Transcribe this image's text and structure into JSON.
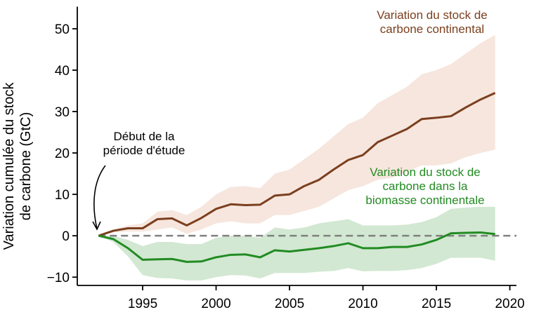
{
  "chart_data": {
    "type": "line",
    "title": "",
    "xlabel": "",
    "ylabel": "Variation cumulée du stock de carbone (GtC)",
    "xlim": [
      1990.55,
      2020.45
    ],
    "ylim": [
      -12,
      55
    ],
    "xticks": [
      1995,
      2000,
      2005,
      2010,
      2015,
      2020
    ],
    "yticks": [
      -10,
      0,
      10,
      20,
      30,
      40,
      50
    ],
    "x": [
      1992,
      1993,
      1994,
      1995,
      1996,
      1997,
      1998,
      1999,
      2000,
      2001,
      2002,
      2003,
      2004,
      2005,
      2006,
      2007,
      2008,
      2009,
      2010,
      2011,
      2012,
      2013,
      2014,
      2015,
      2016,
      2017,
      2018,
      2019
    ],
    "series": [
      {
        "name": "Variation du stock de carbone continental",
        "color": "#7b3f1e",
        "band_color": "#f6e6de",
        "values": [
          0,
          1.2,
          1.8,
          1.8,
          4.0,
          4.2,
          2.5,
          4.3,
          6.5,
          7.6,
          7.4,
          7.5,
          9.7,
          10,
          12,
          13.5,
          16,
          18.3,
          19.5,
          22.6,
          24.2,
          25.8,
          28.2,
          28.5,
          28.9,
          31,
          32.9,
          34.5
        ],
        "upper": [
          0,
          1.5,
          2.5,
          3,
          5.8,
          6.2,
          5,
          7,
          10,
          11.8,
          12,
          11.5,
          15,
          16,
          18.5,
          21,
          24,
          27,
          28.5,
          32,
          34,
          36,
          39,
          40,
          41.5,
          44,
          46.5,
          48.5
        ],
        "lower": [
          0,
          0.8,
          1,
          1,
          1.5,
          2,
          0.5,
          1.5,
          3,
          3.5,
          3,
          3,
          5,
          5,
          6,
          7,
          9,
          11,
          12,
          13.5,
          14,
          15.5,
          17,
          17,
          17.5,
          19,
          20,
          20.8
        ]
      },
      {
        "name": "Variation du stock de carbone dans la biomasse continentale",
        "color": "#228b22",
        "band_color": "#d2e8d2",
        "values": [
          0,
          -0.8,
          -3,
          -5.8,
          -5.7,
          -5.6,
          -6.3,
          -6.2,
          -5.2,
          -4.6,
          -4.5,
          -5.2,
          -3.5,
          -3.8,
          -3.4,
          -3.0,
          -2.5,
          -1.8,
          -3.0,
          -3.0,
          -2.7,
          -2.7,
          -2.1,
          -1.0,
          0.6,
          0.7,
          0.8,
          0.4
        ],
        "upper": [
          0,
          0,
          -1,
          -2.5,
          -1.5,
          -1.5,
          -2,
          -2,
          -0.5,
          0,
          0,
          -0.5,
          2,
          1.5,
          2,
          3,
          3.5,
          4,
          2.5,
          2.5,
          2.5,
          2.7,
          3.3,
          4.5,
          6.5,
          6.8,
          7,
          7
        ],
        "lower": [
          0,
          -1.5,
          -5,
          -9.5,
          -10.2,
          -10.3,
          -10.8,
          -10.8,
          -10,
          -9.5,
          -9.6,
          -10.3,
          -9,
          -9,
          -9,
          -8.7,
          -8.5,
          -7.8,
          -8.6,
          -8.5,
          -8.5,
          -8.3,
          -7.8,
          -6.8,
          -5.3,
          -5.3,
          -5.3,
          -6
        ]
      }
    ],
    "labels": {
      "continental": [
        "Variation du stock de",
        "carbone continental"
      ],
      "biomass": [
        "Variation du stock de",
        "carbone dans la",
        "biomasse continentale"
      ],
      "start": [
        "Début de la",
        "période d'étude"
      ]
    },
    "zero_line": {
      "color": "#808080",
      "style": "dashed"
    },
    "grid": false
  }
}
